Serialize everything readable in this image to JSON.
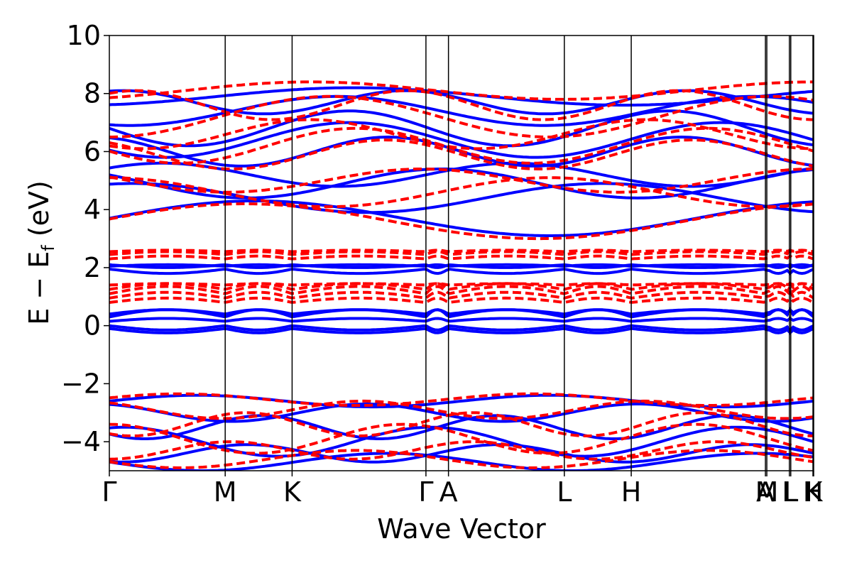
{
  "chart_data": {
    "type": "line",
    "title": "",
    "xlabel": "Wave Vector",
    "ylabel": "E − E",
    "ylabel_sub": "f",
    "ylabel_unit": " (eV)",
    "ylim": [
      -5,
      10
    ],
    "yticks": [
      {
        "value": -4,
        "label": "−4"
      },
      {
        "value": -2,
        "label": "−2"
      },
      {
        "value": 0,
        "label": "0"
      },
      {
        "value": 2,
        "label": "2"
      },
      {
        "value": 4,
        "label": "4"
      },
      {
        "value": 6,
        "label": "6"
      },
      {
        "value": 8,
        "label": "8"
      },
      {
        "value": 10,
        "label": "10"
      }
    ],
    "xlim": [
      0,
      1
    ],
    "kpoints": [
      {
        "label": "Γ",
        "x": 0.0
      },
      {
        "label": "M",
        "x": 0.1645
      },
      {
        "label": "K",
        "x": 0.2595
      },
      {
        "label": "Γ",
        "x": 0.4495
      },
      {
        "label": "A",
        "x": 0.4815
      },
      {
        "label": "L",
        "x": 0.646
      },
      {
        "label": "H",
        "x": 0.741
      },
      {
        "label": "A",
        "x": 0.9315
      },
      {
        "label": "M",
        "x": 0.9335
      },
      {
        "label": "L",
        "x": 0.9655
      },
      {
        "label": "L",
        "x": 0.9675
      },
      {
        "label": "H",
        "x": 0.999
      },
      {
        "label": "K",
        "x": 1.0
      }
    ],
    "grid": false,
    "legend": "none",
    "series_styles": [
      {
        "color": "#0000ff",
        "dash": "solid"
      },
      {
        "color": "#ff0000",
        "dash": "dashed"
      }
    ]
  }
}
